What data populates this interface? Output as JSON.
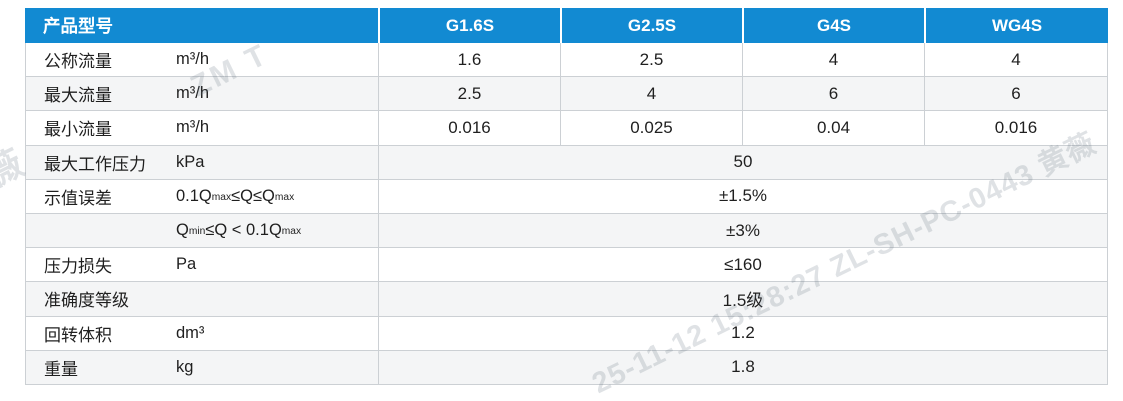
{
  "colors": {
    "header_bg": "#128ad2",
    "header_text": "#ffffff",
    "stripe": "#f4f5f6",
    "border": "#ccd0d4",
    "text": "#1f1f1f"
  },
  "table": {
    "header": {
      "label": "产品型号",
      "models": [
        "G1.6S",
        "G2.5S",
        "G4S",
        "WG4S"
      ]
    },
    "rows": [
      {
        "name": "公称流量",
        "unit": "m³/h",
        "values": [
          "1.6",
          "2.5",
          "4",
          "4"
        ]
      },
      {
        "name": "最大流量",
        "unit": "m³/h",
        "values": [
          "2.5",
          "4",
          "6",
          "6"
        ]
      },
      {
        "name": "最小流量",
        "unit": "m³/h",
        "values": [
          "0.016",
          "0.025",
          "0.04",
          "0.016"
        ]
      },
      {
        "name": "最大工作压力",
        "unit": "kPa",
        "merged_value": "50"
      },
      {
        "name": "示值误差",
        "unit": "0.1Q[max]≤Q≤Q[max]",
        "merged_value": "±1.5%"
      },
      {
        "name": "",
        "unit": "Q[min]≤Q < 0.1Q[max]",
        "merged_value": "±3%"
      },
      {
        "name": "压力损失",
        "unit": "Pa",
        "merged_value": "≤160"
      },
      {
        "name": "准确度等级",
        "unit": "",
        "merged_value": "1.5级"
      },
      {
        "name": "回转体积",
        "unit": "dm³",
        "merged_value": "1.2"
      },
      {
        "name": "重量",
        "unit": "kg",
        "merged_value": "1.8"
      }
    ]
  },
  "watermark": {
    "fragments": [
      "薇",
      "ZM T",
      "25-11-12 15:28:27 ZL-SH-PC-0443 黄薇"
    ]
  }
}
